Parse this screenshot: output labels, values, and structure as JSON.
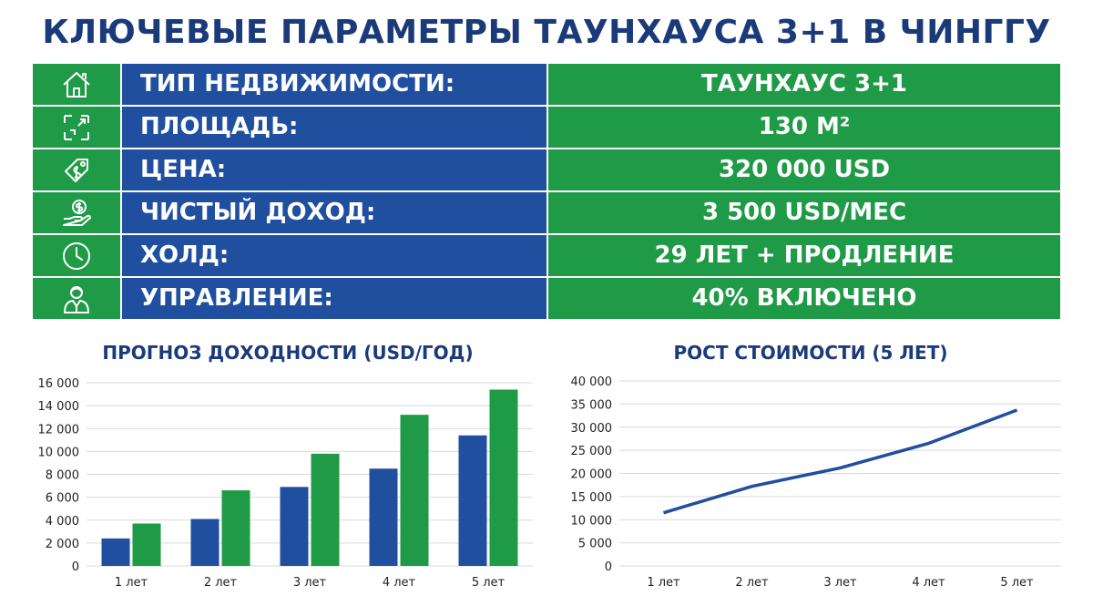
{
  "header": {
    "title": "КЛЮЧЕВЫЕ ПАРАМЕТРЫ ТАУНХАУСА 3+1 В ЧИНГГУ"
  },
  "params": [
    {
      "icon": "house-icon",
      "label": "ТИП НЕДВИЖИМОСТИ:",
      "value": "ТАУНХАУС 3+1"
    },
    {
      "icon": "area-icon",
      "label": "ПЛОЩАДЬ:",
      "value": "130 М²"
    },
    {
      "icon": "price-tag-icon",
      "label": "ЦЕНА:",
      "value": "320 000 USD"
    },
    {
      "icon": "hand-coin-icon",
      "label": "ЧИСТЫЙ ДОХОД:",
      "value": "3 500 USD/МЕС"
    },
    {
      "icon": "clock-icon",
      "label": "ХОЛД:",
      "value": "29 ЛЕТ + ПРОДЛЕНИЕ"
    },
    {
      "icon": "manager-icon",
      "label": "УПРАВЛЕНИЕ:",
      "value": "40% ВКЛЮЧЕНО"
    }
  ],
  "colors": {
    "blue": "#1f4f9e",
    "green": "#1f9a47",
    "title": "#1a3a7a",
    "line": "#1f4f9e"
  },
  "chart_data": [
    {
      "type": "bar",
      "title": "ПРОГНОЗ ДОХОДНОСТИ (USD/ГОД)",
      "categories": [
        "1 лет",
        "2 лет",
        "3 лет",
        "4 лет",
        "5 лет"
      ],
      "series": [
        {
          "values": [
            2400,
            4100,
            6900,
            8500,
            11400
          ],
          "color": "#1f4f9e"
        },
        {
          "values": [
            3700,
            6600,
            9800,
            13200,
            15400
          ],
          "color": "#1f9a47"
        }
      ],
      "yticks": [
        0,
        2000,
        4000,
        6000,
        8000,
        10000,
        12000,
        14000,
        16000
      ],
      "ytick_labels": [
        "0",
        "2 000",
        "4 000",
        "6 000",
        "8 000",
        "10 000",
        "12 000",
        "14 000",
        "16 000"
      ],
      "ylim": [
        0,
        16000
      ],
      "grid": true
    },
    {
      "type": "line",
      "title": "РОСТ СТОИМОСТИ (5 ЛЕТ)",
      "categories": [
        "1 лет",
        "2 лет",
        "3 лет",
        "4 лет",
        "5 лет"
      ],
      "series": [
        {
          "values": [
            11500,
            17200,
            21200,
            26500,
            33700
          ],
          "color": "#1f4f9e"
        }
      ],
      "yticks": [
        0,
        5000,
        10000,
        15000,
        20000,
        25000,
        30000,
        35000,
        40000
      ],
      "ytick_labels": [
        "0",
        "5 000",
        "10 000",
        "15 000",
        "20 000",
        "25 000",
        "30 000",
        "35 000",
        "40 000"
      ],
      "ylim": [
        0,
        40000
      ],
      "grid": true
    }
  ]
}
